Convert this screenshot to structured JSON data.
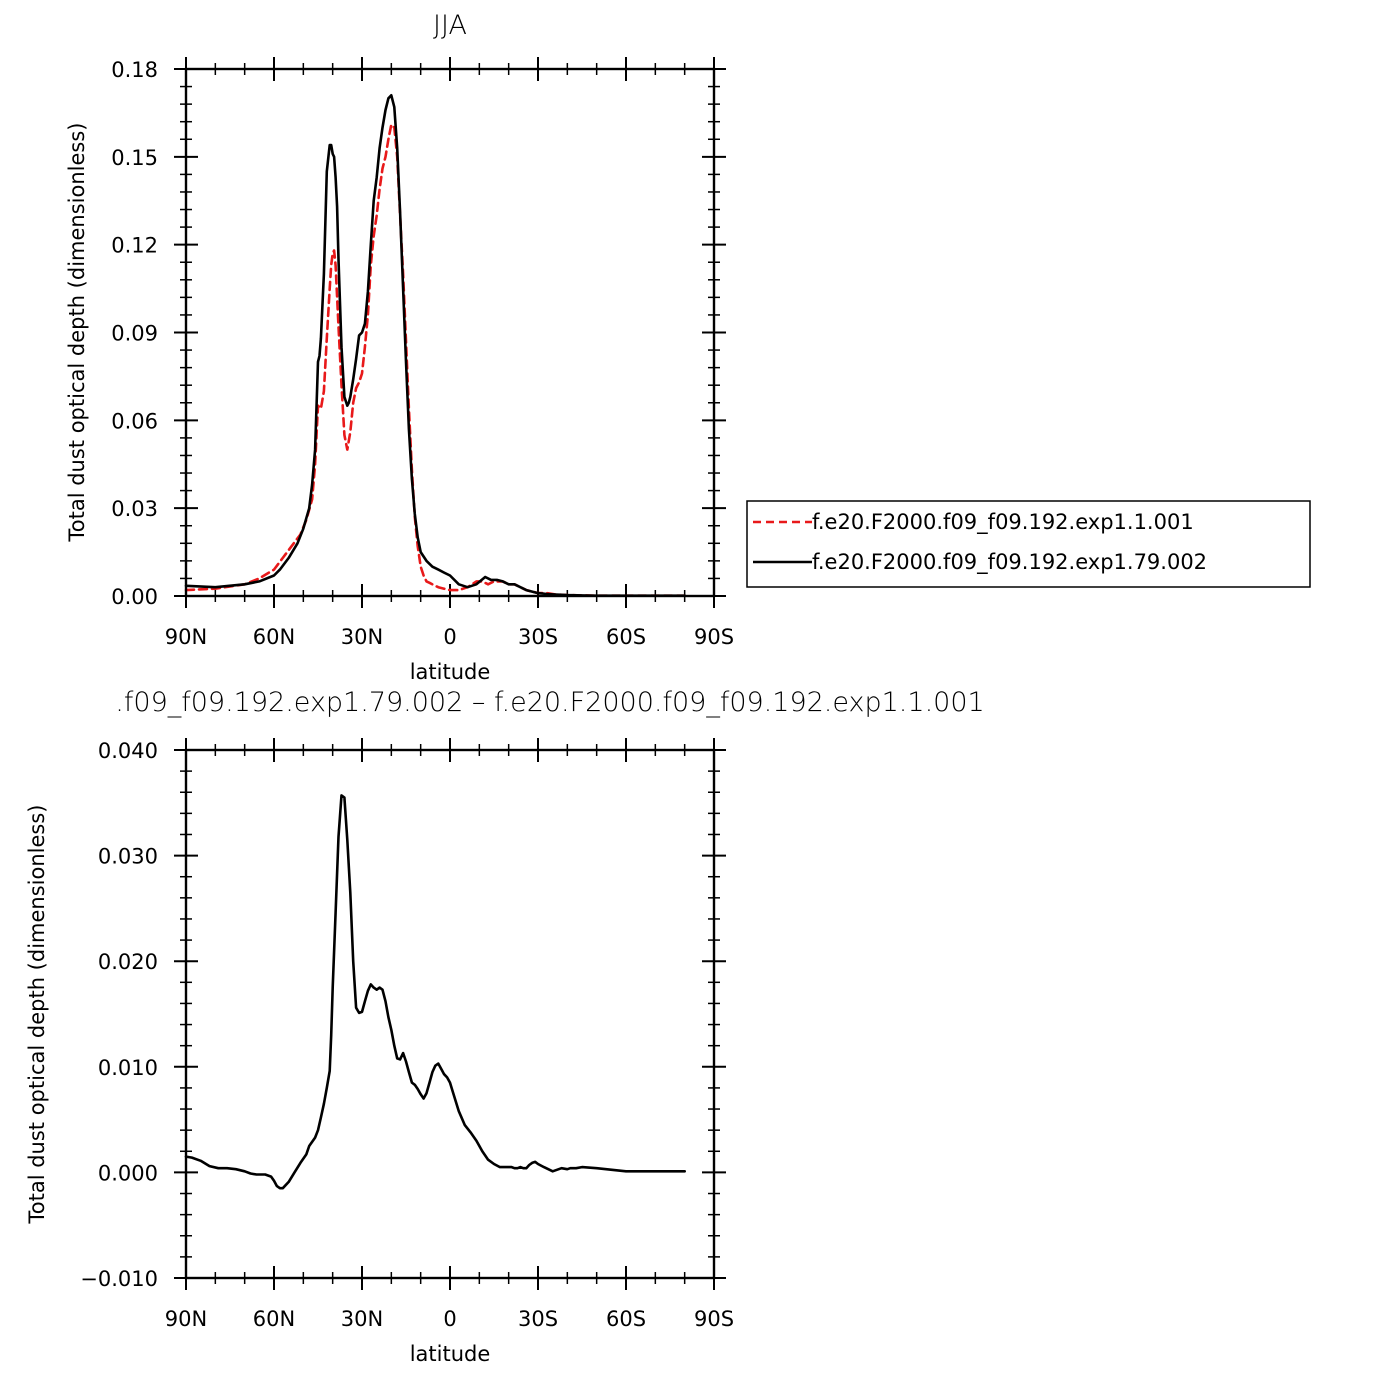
{
  "chart_data": [
    {
      "type": "line",
      "title": "JJA",
      "xlabel": "latitude",
      "ylabel": "Total dust optical depth (dimensionless)",
      "xlim": [
        90,
        -90
      ],
      "ylim": [
        0,
        0.18
      ],
      "x_ticks": [
        90,
        60,
        30,
        0,
        -30,
        -60,
        -90
      ],
      "x_tick_labels": [
        "90N",
        "60N",
        "30N",
        "0",
        "30S",
        "60S",
        "90S"
      ],
      "y_ticks": [
        0,
        0.03,
        0.06,
        0.09,
        0.12,
        0.15,
        0.18
      ],
      "y_tick_labels": [
        "0.00",
        "0.03",
        "0.06",
        "0.09",
        "0.12",
        "0.15",
        "0.18"
      ],
      "legend_position": "right",
      "series": [
        {
          "name": "f.e20.F2000.f09_f09.192.exp1.1.001",
          "color": "#e8191a",
          "dash": "dashed",
          "x": [
            90,
            80,
            70,
            65,
            60,
            57,
            54,
            51,
            49,
            47,
            46,
            45,
            44,
            43,
            42,
            41,
            40.5,
            40,
            39.5,
            39,
            38,
            37,
            36,
            35,
            34,
            33,
            32,
            31,
            30,
            29,
            28,
            27,
            26,
            25,
            24,
            23,
            22,
            21,
            20,
            19,
            18,
            17,
            16,
            15,
            14,
            13,
            12,
            11,
            10,
            9,
            8,
            7,
            6,
            5,
            4,
            2,
            0,
            -3,
            -6,
            -9,
            -11,
            -13,
            -15,
            -17,
            -18,
            -20,
            -22,
            -24,
            -26,
            -28,
            -30,
            -33,
            -36,
            -40,
            -45,
            -50,
            -60,
            -70,
            -80
          ],
          "values": [
            0.002,
            0.0025,
            0.004,
            0.006,
            0.009,
            0.013,
            0.017,
            0.021,
            0.026,
            0.033,
            0.045,
            0.065,
            0.064,
            0.07,
            0.088,
            0.105,
            0.113,
            0.117,
            0.118,
            0.113,
            0.092,
            0.072,
            0.055,
            0.05,
            0.056,
            0.066,
            0.071,
            0.073,
            0.076,
            0.085,
            0.096,
            0.113,
            0.123,
            0.13,
            0.139,
            0.146,
            0.15,
            0.156,
            0.161,
            0.16,
            0.15,
            0.13,
            0.11,
            0.087,
            0.064,
            0.043,
            0.027,
            0.017,
            0.01,
            0.007,
            0.005,
            0.0045,
            0.004,
            0.0035,
            0.003,
            0.0025,
            0.002,
            0.002,
            0.003,
            0.005,
            0.005,
            0.004,
            0.005,
            0.005,
            0.005,
            0.004,
            0.004,
            0.003,
            0.002,
            0.0015,
            0.001,
            0.001,
            0.0005,
            0.0003,
            0.0002,
            0.0001,
            0.0001,
            0.0001,
            0.0001
          ]
        },
        {
          "name": "f.e20.F2000.f09_f09.192.exp1.79.002",
          "color": "#000000",
          "dash": "solid",
          "x": [
            90,
            80,
            70,
            65,
            60,
            58,
            55,
            52,
            50,
            48,
            47,
            46,
            45,
            44.5,
            44,
            43,
            42,
            41,
            40.5,
            40,
            39.5,
            39,
            38.5,
            38,
            37,
            36,
            35,
            34.5,
            34,
            33,
            32,
            31,
            30,
            29,
            28,
            27,
            26,
            25,
            24,
            23,
            22,
            21,
            20,
            19,
            18,
            17,
            16,
            15,
            14,
            13,
            12,
            11,
            10,
            8,
            6,
            4,
            2,
            0,
            -3,
            -6,
            -9,
            -12,
            -14,
            -16,
            -18,
            -20,
            -22,
            -24,
            -26,
            -28,
            -30,
            -33,
            -36,
            -40,
            -45,
            -50,
            -60,
            -70,
            -80
          ],
          "values": [
            0.0035,
            0.003,
            0.004,
            0.005,
            0.007,
            0.009,
            0.013,
            0.018,
            0.023,
            0.03,
            0.038,
            0.05,
            0.08,
            0.082,
            0.088,
            0.11,
            0.145,
            0.154,
            0.154,
            0.151,
            0.15,
            0.143,
            0.133,
            0.115,
            0.085,
            0.068,
            0.065,
            0.066,
            0.068,
            0.074,
            0.081,
            0.089,
            0.09,
            0.093,
            0.104,
            0.12,
            0.135,
            0.143,
            0.153,
            0.16,
            0.166,
            0.17,
            0.171,
            0.167,
            0.153,
            0.131,
            0.105,
            0.08,
            0.057,
            0.04,
            0.028,
            0.02,
            0.015,
            0.012,
            0.01,
            0.009,
            0.008,
            0.007,
            0.004,
            0.003,
            0.004,
            0.0065,
            0.0055,
            0.0055,
            0.005,
            0.004,
            0.004,
            0.003,
            0.002,
            0.0015,
            0.001,
            0.0007,
            0.0005,
            0.0003,
            0.0002,
            0.0001,
            0.0001,
            0.0001,
            0.0001
          ]
        }
      ]
    },
    {
      "type": "line",
      "title": ".f09_f09.192.exp1.79.002 – f.e20.F2000.f09_f09.192.exp1.1.001",
      "xlabel": "latitude",
      "ylabel": "Total dust optical depth (dimensionless)",
      "xlim": [
        90,
        -90
      ],
      "ylim": [
        -0.01,
        0.04
      ],
      "x_ticks": [
        90,
        60,
        30,
        0,
        -30,
        -60,
        -90
      ],
      "x_tick_labels": [
        "90N",
        "60N",
        "30N",
        "0",
        "30S",
        "60S",
        "90S"
      ],
      "y_ticks": [
        -0.01,
        0,
        0.01,
        0.02,
        0.03,
        0.04
      ],
      "y_tick_labels": [
        "−0.010",
        "0.000",
        "0.010",
        "0.020",
        "0.030",
        "0.040"
      ],
      "series": [
        {
          "color": "#000000",
          "dash": "solid",
          "x": [
            90,
            88,
            85,
            82,
            79,
            76,
            73,
            70,
            68,
            66,
            63,
            61,
            60,
            59,
            58,
            57,
            55,
            53,
            51,
            49,
            48,
            46,
            45,
            44,
            43,
            42,
            41,
            40.5,
            40,
            39,
            38,
            37,
            36,
            35,
            34,
            33,
            32,
            31,
            30,
            29,
            28,
            27,
            26,
            25,
            24,
            23,
            22,
            21,
            20,
            19,
            18,
            17,
            16,
            15,
            14,
            13,
            12,
            11,
            10,
            9,
            8,
            7,
            6,
            5,
            4,
            3,
            2,
            1,
            0,
            -1,
            -3,
            -5,
            -7,
            -9,
            -11,
            -13,
            -15,
            -17,
            -18,
            -19,
            -21,
            -22,
            -23,
            -24,
            -25,
            -26,
            -27,
            -28,
            -29,
            -30,
            -32,
            -35,
            -38,
            -40,
            -41,
            -42,
            -43,
            -45,
            -50,
            -60,
            -70,
            -80
          ],
          "values": [
            0.0015,
            0.0014,
            0.0011,
            0.0006,
            0.0004,
            0.0004,
            0.0003,
            0.0001,
            -0.0001,
            -0.0002,
            -0.0002,
            -0.0004,
            -0.0008,
            -0.0013,
            -0.0015,
            -0.0015,
            -0.0009,
            0.0,
            0.0009,
            0.0017,
            0.0025,
            0.0033,
            0.004,
            0.0052,
            0.0065,
            0.008,
            0.0096,
            0.013,
            0.0175,
            0.0246,
            0.0318,
            0.0357,
            0.0355,
            0.0315,
            0.0265,
            0.02,
            0.0156,
            0.0151,
            0.0152,
            0.0162,
            0.0172,
            0.0178,
            0.0175,
            0.0173,
            0.0175,
            0.0173,
            0.0162,
            0.0147,
            0.0135,
            0.012,
            0.0108,
            0.0107,
            0.0113,
            0.0105,
            0.0095,
            0.0085,
            0.0083,
            0.0079,
            0.0074,
            0.007,
            0.0075,
            0.0085,
            0.0095,
            0.0101,
            0.0103,
            0.0098,
            0.0093,
            0.009,
            0.0085,
            0.0076,
            0.0058,
            0.0045,
            0.0038,
            0.003,
            0.002,
            0.0012,
            0.0008,
            0.0005,
            0.0005,
            0.0005,
            0.0005,
            0.0004,
            0.0004,
            0.0005,
            0.0004,
            0.0004,
            0.0007,
            0.0009,
            0.001,
            0.0008,
            0.0005,
            0.0001,
            0.0004,
            0.0003,
            0.0004,
            0.0004,
            0.0004,
            0.0005,
            0.0004,
            0.0001,
            0.0001,
            0.0001
          ]
        }
      ]
    }
  ]
}
